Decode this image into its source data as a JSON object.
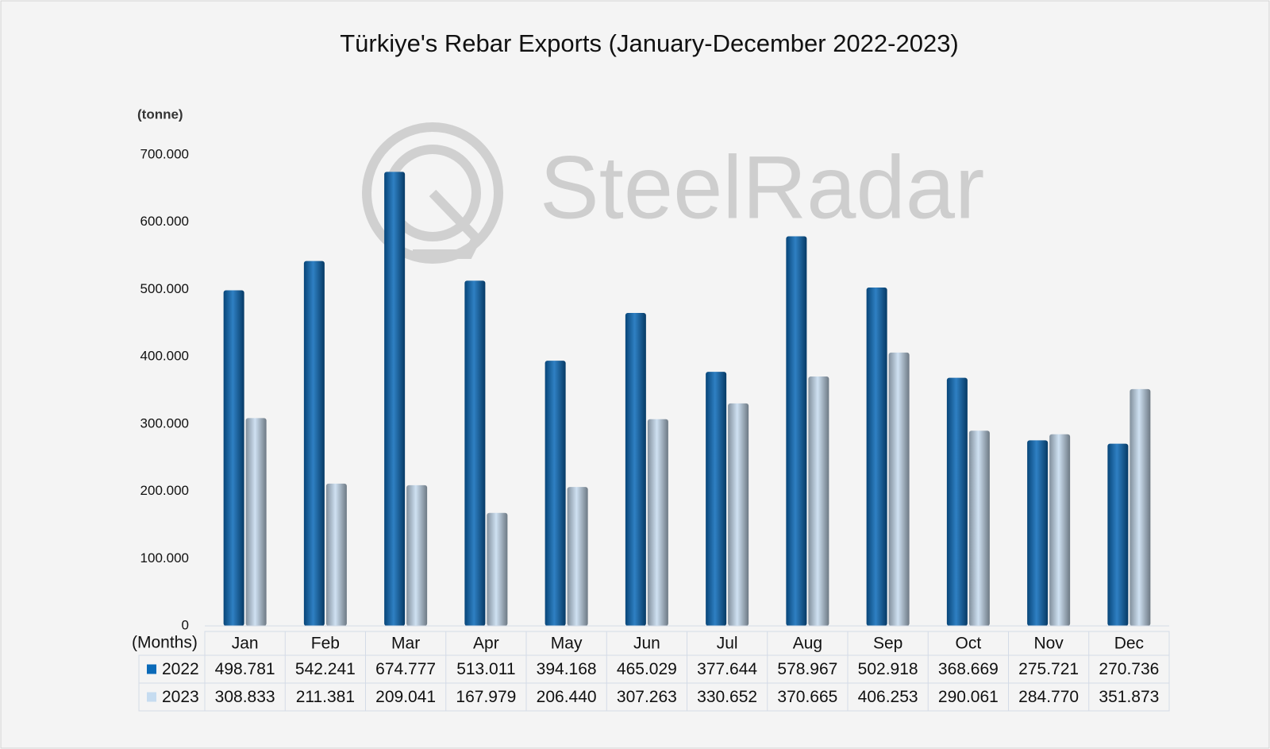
{
  "chart_data": {
    "type": "bar",
    "title": "Türkiye's Rebar Exports (January-December 2022-2023)",
    "y_label": "(tonne)",
    "x_label": "(Months)",
    "watermark": "SteelRadar",
    "categories": [
      "Jan",
      "Feb",
      "Mar",
      "Apr",
      "May",
      "Jun",
      "Jul",
      "Aug",
      "Sep",
      "Oct",
      "Nov",
      "Dec"
    ],
    "series": [
      {
        "name": "2022",
        "color": "#0a6ab8",
        "values": [
          498781,
          542241,
          674777,
          513011,
          394168,
          465029,
          377644,
          578967,
          502918,
          368669,
          275721,
          270736
        ],
        "value_labels": [
          "498.781",
          "542.241",
          "674.777",
          "513.011",
          "394.168",
          "465.029",
          "377.644",
          "578.967",
          "502.918",
          "368.669",
          "275.721",
          "270.736"
        ]
      },
      {
        "name": "2023",
        "color": "#c6dcf0",
        "values": [
          308833,
          211381,
          209041,
          167979,
          206440,
          307263,
          330652,
          370665,
          406253,
          290061,
          284770,
          351873
        ],
        "value_labels": [
          "308.833",
          "211.381",
          "209.041",
          "167.979",
          "206.440",
          "307.263",
          "330.652",
          "370.665",
          "406.253",
          "290.061",
          "284.770",
          "351.873"
        ]
      }
    ],
    "ylim": [
      0,
      700000
    ],
    "yticks": [
      0,
      {
        "value": 100000,
        "label": "100.000"
      },
      {
        "value": 200000,
        "label": "200.000"
      },
      {
        "value": 300000,
        "label": "300.000"
      },
      {
        "value": 400000,
        "label": "400.000"
      },
      {
        "value": 500000,
        "label": "500.000"
      },
      {
        "value": 600000,
        "label": "600.000"
      },
      {
        "value": 700000,
        "label": "700.000"
      }
    ],
    "grid": false
  }
}
